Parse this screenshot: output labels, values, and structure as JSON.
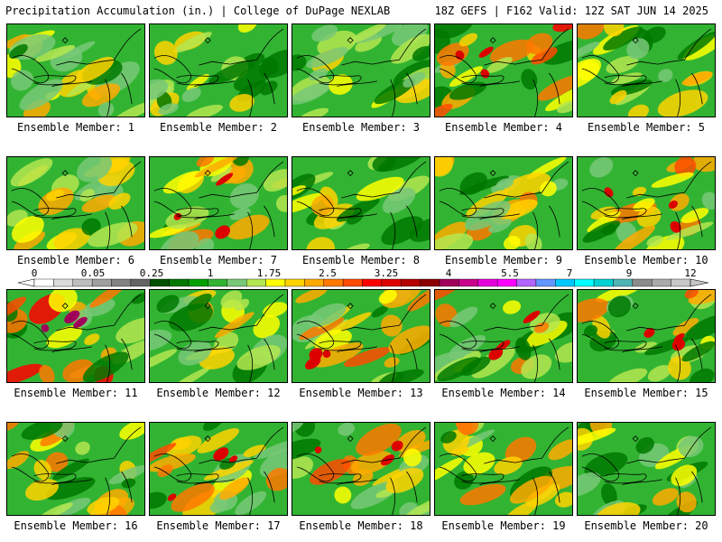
{
  "header": {
    "title": "Precipitation Accumulation (in.) | College of DuPage NEXLAB",
    "run_info": "18Z GEFS | F162 Valid: 12Z SAT JUN 14 2025"
  },
  "members": [
    {
      "label": "Ensemble Member: 1",
      "intensity": 0.35
    },
    {
      "label": "Ensemble Member: 2",
      "intensity": 0.3
    },
    {
      "label": "Ensemble Member: 3",
      "intensity": 0.25
    },
    {
      "label": "Ensemble Member: 4",
      "intensity": 0.75
    },
    {
      "label": "Ensemble Member: 5",
      "intensity": 0.5
    },
    {
      "label": "Ensemble Member: 6",
      "intensity": 0.4
    },
    {
      "label": "Ensemble Member: 7",
      "intensity": 0.6
    },
    {
      "label": "Ensemble Member: 8",
      "intensity": 0.35
    },
    {
      "label": "Ensemble Member: 9",
      "intensity": 0.55
    },
    {
      "label": "Ensemble Member: 10",
      "intensity": 0.7
    },
    {
      "label": "Ensemble Member: 11",
      "intensity": 0.9
    },
    {
      "label": "Ensemble Member: 12",
      "intensity": 0.3
    },
    {
      "label": "Ensemble Member: 13",
      "intensity": 0.6
    },
    {
      "label": "Ensemble Member: 14",
      "intensity": 0.7
    },
    {
      "label": "Ensemble Member: 15",
      "intensity": 0.65
    },
    {
      "label": "Ensemble Member: 16",
      "intensity": 0.5
    },
    {
      "label": "Ensemble Member: 17",
      "intensity": 0.65
    },
    {
      "label": "Ensemble Member: 18",
      "intensity": 0.6
    },
    {
      "label": "Ensemble Member: 19",
      "intensity": 0.5
    },
    {
      "label": "Ensemble Member: 20",
      "intensity": 0.35
    }
  ],
  "colorbar": {
    "labels": [
      "0",
      "0.05",
      "0.25",
      "1",
      "1.75",
      "2.5",
      "3.25",
      "4",
      "5.5",
      "7",
      "9",
      "12"
    ],
    "colors": [
      "#ffffff",
      "#dcdcdc",
      "#bebebe",
      "#a0a0a0",
      "#828282",
      "#646464",
      "#005000",
      "#007800",
      "#00a000",
      "#32b432",
      "#78c878",
      "#b4e650",
      "#ffff00",
      "#ffd200",
      "#ffaa00",
      "#ff7800",
      "#ff4b00",
      "#ff0000",
      "#dc0000",
      "#b40000",
      "#8c0000",
      "#a0005a",
      "#c8008c",
      "#e600dc",
      "#ff00ff",
      "#b464ff",
      "#6496ff",
      "#00c8ff",
      "#00ffff",
      "#00d2d2",
      "#50b4b4",
      "#8c8c8c",
      "#aaaaaa",
      "#c8c8c8"
    ]
  }
}
